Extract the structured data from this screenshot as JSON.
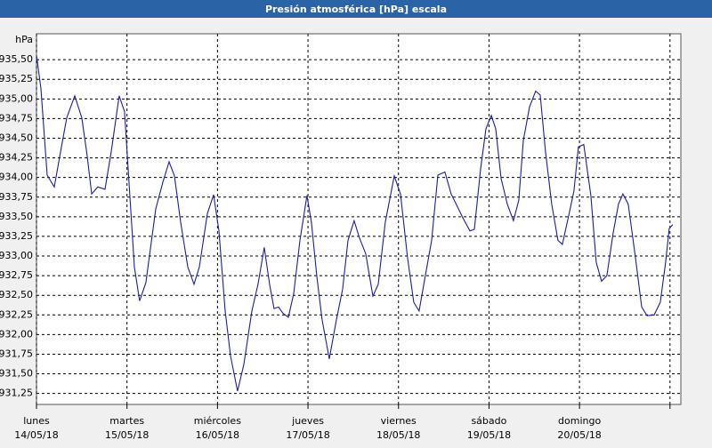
{
  "chart_data": {
    "type": "line",
    "title": "Presión atmosférica [hPa] escala",
    "y_label": "hPa",
    "xlim": [
      0,
      7.12
    ],
    "ylim": [
      931.11,
      935.83
    ],
    "grid": true,
    "xticks": [
      {
        "value": 0,
        "label": "lunes",
        "date": "14/05/18"
      },
      {
        "value": 1,
        "label": "martes",
        "date": "15/05/18"
      },
      {
        "value": 2,
        "label": "miércoles",
        "date": "16/05/18"
      },
      {
        "value": 3,
        "label": "jueves",
        "date": "17/05/18"
      },
      {
        "value": 4,
        "label": "viernes",
        "date": "18/05/18"
      },
      {
        "value": 5,
        "label": "sábado",
        "date": "19/05/18"
      },
      {
        "value": 6,
        "label": "domingo",
        "date": "20/05/18"
      },
      {
        "value": 7,
        "label": null,
        "date": null
      }
    ],
    "yticks": [
      {
        "value": 931.25,
        "label": "931,25"
      },
      {
        "value": 931.5,
        "label": "931,50"
      },
      {
        "value": 931.75,
        "label": "931,75"
      },
      {
        "value": 932,
        "label": "932,00"
      },
      {
        "value": 932.25,
        "label": "932,25"
      },
      {
        "value": 932.5,
        "label": "932,50"
      },
      {
        "value": 932.75,
        "label": "932,75"
      },
      {
        "value": 933,
        "label": "933,00"
      },
      {
        "value": 933.25,
        "label": "933,25"
      },
      {
        "value": 933.5,
        "label": "933,50"
      },
      {
        "value": 933.75,
        "label": "933,75"
      },
      {
        "value": 934,
        "label": "934,00"
      },
      {
        "value": 934.25,
        "label": "934,25"
      },
      {
        "value": 934.5,
        "label": "934,50"
      },
      {
        "value": 934.75,
        "label": "934,75"
      },
      {
        "value": 935,
        "label": "935,00"
      },
      {
        "value": 935.25,
        "label": "935,25"
      },
      {
        "value": 935.5,
        "label": "935,50"
      }
    ],
    "color": "#1c1ca8",
    "x": [
      0,
      0.049,
      0.118,
      0.197,
      0.285,
      0.334,
      0.423,
      0.501,
      0.56,
      0.61,
      0.678,
      0.757,
      0.826,
      0.914,
      0.973,
      1.032,
      1.082,
      1.14,
      1.209,
      1.318,
      1.396,
      1.465,
      1.524,
      1.593,
      1.672,
      1.741,
      1.8,
      1.888,
      1.957,
      2.016,
      2.085,
      2.144,
      2.222,
      2.291,
      2.38,
      2.448,
      2.517,
      2.576,
      2.625,
      2.675,
      2.724,
      2.783,
      2.842,
      2.911,
      2.989,
      3.038,
      3.097,
      3.156,
      3.235,
      3.314,
      3.383,
      3.442,
      3.51,
      3.569,
      3.638,
      3.717,
      3.776,
      3.854,
      3.953,
      4.022,
      4.1,
      4.169,
      4.228,
      4.297,
      4.366,
      4.435,
      4.513,
      4.582,
      4.651,
      4.71,
      4.789,
      4.838,
      4.907,
      4.966,
      5.025,
      5.074,
      5.133,
      5.202,
      5.27,
      5.329,
      5.379,
      5.448,
      5.516,
      5.566,
      5.624,
      5.693,
      5.762,
      5.811,
      5.88,
      5.939,
      5.988,
      6.047,
      6.126,
      6.185,
      6.244,
      6.303,
      6.372,
      6.431,
      6.48,
      6.539,
      6.618,
      6.687,
      6.746,
      6.825,
      6.893,
      6.952,
      6.991,
      7.031
    ],
    "values": [
      935.56,
      935.13,
      934.03,
      933.88,
      934.45,
      934.76,
      935.04,
      934.76,
      934.28,
      933.79,
      933.88,
      933.85,
      934.33,
      935.04,
      934.84,
      933.77,
      932.86,
      932.43,
      932.66,
      933.6,
      933.94,
      934.2,
      934.02,
      933.43,
      932.86,
      932.64,
      932.86,
      933.54,
      933.78,
      933.32,
      932.3,
      931.73,
      931.28,
      931.62,
      932.3,
      932.64,
      933.11,
      932.64,
      932.33,
      932.35,
      932.27,
      932.22,
      932.52,
      933.2,
      933.77,
      933.43,
      932.75,
      932.19,
      931.69,
      932.19,
      932.58,
      933.2,
      933.45,
      933.23,
      933.03,
      932.49,
      932.64,
      933.43,
      934.02,
      933.79,
      932.98,
      932.41,
      932.3,
      932.75,
      933.2,
      934.03,
      934.07,
      933.79,
      933.63,
      933.49,
      933.32,
      933.34,
      934.11,
      934.62,
      934.79,
      934.62,
      933.99,
      933.66,
      933.45,
      933.71,
      934.47,
      934.9,
      935.1,
      935.05,
      934.33,
      933.66,
      933.2,
      933.15,
      933.51,
      933.83,
      934.39,
      934.42,
      933.77,
      932.92,
      932.68,
      932.75,
      933.29,
      933.66,
      933.79,
      933.66,
      932.98,
      932.35,
      932.24,
      932.25,
      932.41,
      932.92,
      933.35,
      933.4
    ]
  }
}
